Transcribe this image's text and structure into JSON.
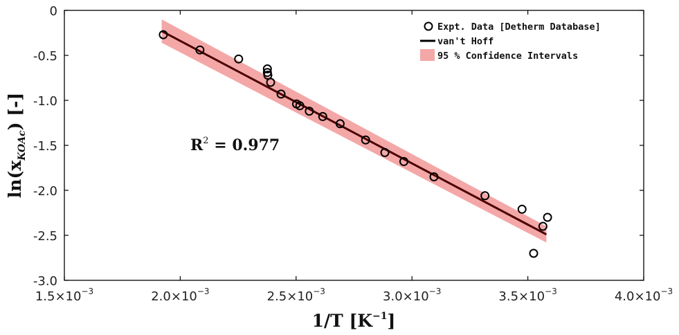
{
  "chart_data": {
    "type": "scatter",
    "xlabel_main": "1/T [K",
    "xlabel_sup": "−1",
    "xlabel_end": "]",
    "ylabel_main": "ln(x",
    "ylabel_sub": "KOAc",
    "ylabel_end": ") [-]",
    "xlim": [
      0.0015,
      0.004
    ],
    "ylim": [
      -3.0,
      0.0
    ],
    "x_ticks": [
      0.0015,
      0.002,
      0.0025,
      0.003,
      0.0035,
      0.004
    ],
    "x_tick_mantissas": [
      "1.5",
      "2.0",
      "2.5",
      "3.0",
      "3.5",
      "4.0"
    ],
    "x_tick_times": "×10",
    "x_tick_exponent": "−3",
    "y_ticks": [
      0,
      -0.5,
      -1.0,
      -1.5,
      -2.0,
      -2.5,
      -3.0
    ],
    "y_tick_labels": [
      "0",
      "-0.5",
      "-1.0",
      "-1.5",
      "-2.0",
      "-2.5",
      "-3.0"
    ],
    "series": [
      {
        "name": "Expt. Data [Detherm Database]",
        "kind": "scatter",
        "x": [
          0.001927,
          0.002085,
          0.002252,
          0.002376,
          0.002376,
          0.002378,
          0.00239,
          0.002435,
          0.002502,
          0.002516,
          0.002557,
          0.002615,
          0.00269,
          0.0028,
          0.002883,
          0.002965,
          0.003095,
          0.003315,
          0.003475,
          0.003525,
          0.003565,
          0.003585
        ],
        "y": [
          -0.27,
          -0.44,
          -0.54,
          -0.65,
          -0.69,
          -0.72,
          -0.8,
          -0.93,
          -1.04,
          -1.06,
          -1.12,
          -1.18,
          -1.26,
          -1.44,
          -1.58,
          -1.68,
          -1.85,
          -2.06,
          -2.21,
          -2.7,
          -2.4,
          -2.3
        ]
      },
      {
        "name": "van't Hoff",
        "kind": "line",
        "x": [
          0.00192,
          0.00358
        ],
        "y": [
          -0.23,
          -2.49
        ]
      },
      {
        "name": "95 % Confidence Intervals",
        "kind": "band",
        "x": [
          0.00192,
          0.00358
        ],
        "y_upper": [
          -0.1,
          -2.4
        ],
        "y_lower": [
          -0.36,
          -2.58
        ]
      }
    ],
    "legend_position": "top-right",
    "annotation": {
      "main": "R",
      "sup": "2",
      "rest": " = 0.977"
    },
    "grid": false,
    "colors": {
      "marker": "#000000",
      "line": "#4a0000",
      "band": "#f4a7a7"
    }
  }
}
